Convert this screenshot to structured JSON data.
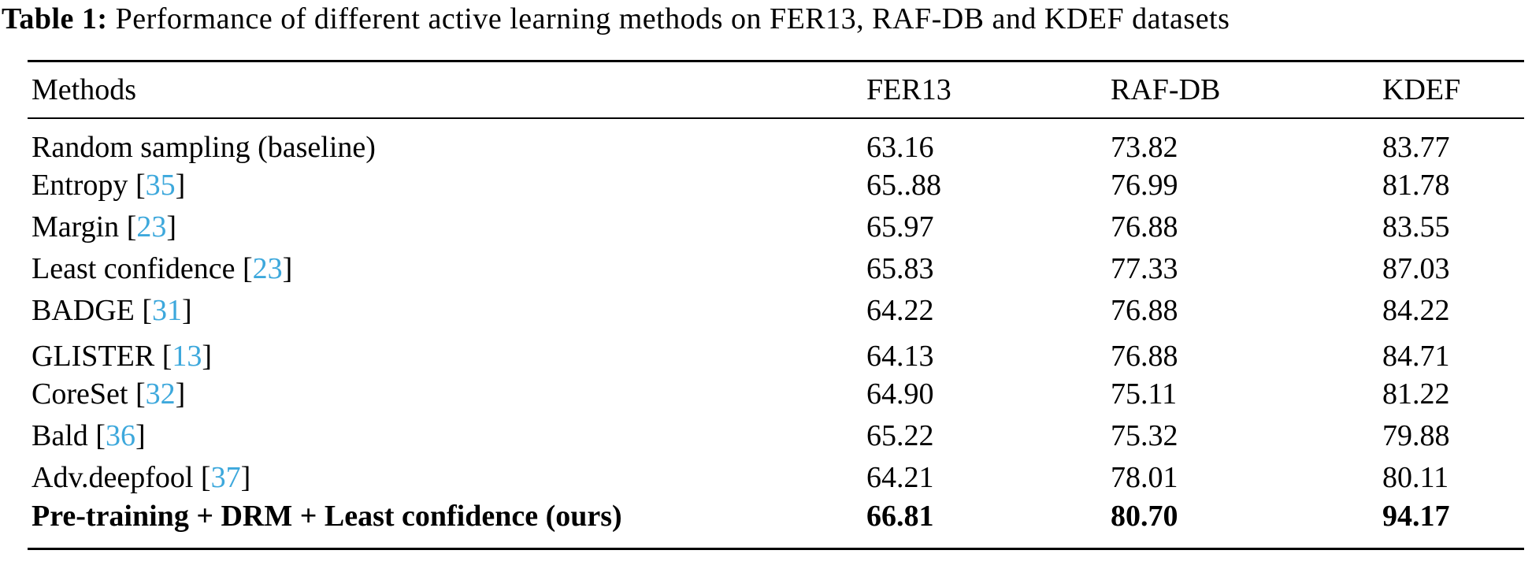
{
  "caption": {
    "label": "Table 1:",
    "text": "Performance of different active learning methods on FER13, RAF-DB and KDEF datasets"
  },
  "table": {
    "bracket_open": " [",
    "bracket_close": "]",
    "header": {
      "methods": "Methods",
      "fer13": "FER13",
      "rafdb": "RAF-DB",
      "kdef": "KDEF"
    },
    "rows": [
      {
        "method": "Random sampling (baseline)",
        "citation": "",
        "fer13": "63.16",
        "rafdb": "73.82",
        "kdef": "83.77",
        "bold": false,
        "group_start": false
      },
      {
        "method": "Entropy",
        "citation": "35",
        "fer13": "65..88",
        "rafdb": "76.99",
        "kdef": "81.78",
        "bold": false,
        "group_start": false
      },
      {
        "method": "Margin",
        "citation": "23",
        "fer13": "65.97",
        "rafdb": "76.88",
        "kdef": "83.55",
        "bold": false,
        "group_start": false
      },
      {
        "method": "Least confidence",
        "citation": "23",
        "fer13": "65.83",
        "rafdb": "77.33",
        "kdef": "87.03",
        "bold": false,
        "group_start": false
      },
      {
        "method": "BADGE",
        "citation": "31",
        "fer13": "64.22",
        "rafdb": "76.88",
        "kdef": "84.22",
        "bold": false,
        "group_start": false
      },
      {
        "method": "GLISTER",
        "citation": "13",
        "fer13": "64.13",
        "rafdb": "76.88",
        "kdef": "84.71",
        "bold": false,
        "group_start": true
      },
      {
        "method": "CoreSet",
        "citation": "32",
        "fer13": "64.90",
        "rafdb": "75.11",
        "kdef": "81.22",
        "bold": false,
        "group_start": false
      },
      {
        "method": "Bald",
        "citation": "36",
        "fer13": "65.22",
        "rafdb": "75.32",
        "kdef": "79.88",
        "bold": false,
        "group_start": false
      },
      {
        "method": "Adv.deepfool",
        "citation": "37",
        "fer13": "64.21",
        "rafdb": "78.01",
        "kdef": "80.11",
        "bold": false,
        "group_start": false
      },
      {
        "method": "Pre-training + DRM + Least confidence (ours)",
        "citation": "",
        "fer13": "66.81",
        "rafdb": "80.70",
        "kdef": "94.17",
        "bold": true,
        "group_start": false
      }
    ]
  },
  "colors": {
    "citation_link": "#3da8dc",
    "text": "#000000",
    "rule": "#000000"
  }
}
